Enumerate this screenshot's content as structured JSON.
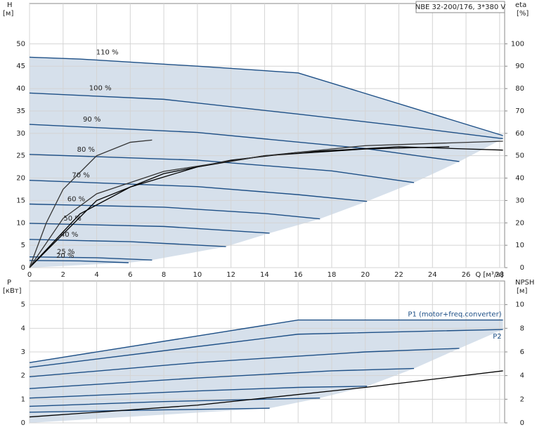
{
  "chart_data": [
    {
      "type": "line",
      "title": "NBE 32-200/176, 3*380 V",
      "y_label": "H",
      "y_unit": "[м]",
      "y2_label": "eta",
      "y2_unit": "[%]",
      "x_label": "Q [м³/ч]",
      "xlim": [
        0,
        28.3
      ],
      "xticks": [
        0,
        2,
        4,
        6,
        8,
        10,
        12,
        14,
        16,
        18,
        20,
        22,
        24,
        26,
        28
      ],
      "ylim": [
        0,
        59
      ],
      "yticks": [
        0,
        5,
        10,
        15,
        20,
        25,
        30,
        35,
        40,
        45,
        50
      ],
      "y2lim": [
        0,
        118
      ],
      "y2ticks": [
        0,
        10,
        20,
        30,
        40,
        50,
        60,
        70,
        80,
        90,
        100
      ],
      "grid": true,
      "envelope_color": "#cfdbe7",
      "series": [
        {
          "name": "110 %",
          "color": "#1d4f86",
          "x": [
            0,
            3,
            10,
            16,
            28.2
          ],
          "values": [
            47,
            46.6,
            45,
            43.5,
            29.5
          ]
        },
        {
          "name": "100 %",
          "color": "#1d4f86",
          "x": [
            0,
            8,
            16,
            22,
            28.2
          ],
          "values": [
            39,
            37.6,
            34.3,
            31.7,
            28.8
          ]
        },
        {
          "name": "90 %",
          "color": "#1d4f86",
          "x": [
            0,
            10,
            20,
            25.6
          ],
          "values": [
            32,
            30.2,
            26.6,
            23.7
          ]
        },
        {
          "name": "80 %",
          "color": "#1d4f86",
          "x": [
            0,
            10,
            18,
            22.9
          ],
          "values": [
            25.3,
            24,
            21.6,
            19
          ]
        },
        {
          "name": "70 %",
          "color": "#1d4f86",
          "x": [
            0,
            10,
            16,
            20.1
          ],
          "values": [
            19.5,
            18.1,
            16.3,
            14.8
          ]
        },
        {
          "name": "60 %",
          "color": "#1d4f86",
          "x": [
            0,
            8,
            14,
            17.3
          ],
          "values": [
            14.2,
            13.5,
            12.1,
            10.9
          ]
        },
        {
          "name": "50 %",
          "color": "#1d4f86",
          "x": [
            0,
            8,
            14.3
          ],
          "values": [
            9.9,
            9.2,
            7.7
          ]
        },
        {
          "name": "40 %",
          "color": "#1d4f86",
          "x": [
            0,
            6,
            11.7
          ],
          "values": [
            6.3,
            5.8,
            4.7
          ]
        },
        {
          "name": "25 %",
          "color": "#1d4f86",
          "x": [
            0,
            4,
            7.3
          ],
          "values": [
            2.4,
            2.2,
            1.7
          ]
        },
        {
          "name": "20 %",
          "color": "#1d4f86",
          "x": [
            0,
            3,
            5.9
          ],
          "values": [
            1.6,
            1.5,
            1.1
          ]
        },
        {
          "axis": "y2",
          "color": "#000000",
          "x": [
            0,
            4,
            8,
            12,
            16,
            22,
            28.2
          ],
          "values": [
            0,
            30,
            42,
            48,
            51.5,
            54,
            52.5
          ]
        },
        {
          "axis": "y2",
          "color": "#000000",
          "x": [
            0,
            3,
            6,
            10,
            14,
            20,
            25
          ],
          "values": [
            0,
            24,
            36,
            45,
            50,
            53,
            54
          ]
        },
        {
          "axis": "y2",
          "color": "#333333",
          "x": [
            0,
            2,
            4,
            8,
            14,
            20,
            28.2
          ],
          "values": [
            0,
            22,
            33,
            43,
            50,
            54.5,
            56.5
          ]
        },
        {
          "axis": "y2",
          "color": "#333333",
          "x": [
            0,
            1,
            2,
            4,
            6,
            7.3
          ],
          "values": [
            0,
            20,
            35,
            50,
            56,
            57
          ]
        }
      ]
    },
    {
      "type": "line",
      "y_label": "P",
      "y_unit": "[кВт]",
      "y2_label": "NPSH",
      "y2_unit": "[м]",
      "xlim": [
        0,
        28.3
      ],
      "xticks": [
        0,
        2,
        4,
        6,
        8,
        10,
        12,
        14,
        16,
        18,
        20,
        22,
        24,
        26,
        28
      ],
      "ylim": [
        0,
        6
      ],
      "yticks": [
        0,
        1,
        2,
        3,
        4,
        5
      ],
      "y2lim": [
        0,
        12
      ],
      "y2ticks": [
        0,
        2,
        4,
        6,
        8,
        10
      ],
      "grid": true,
      "envelope_color": "#cfdbe7",
      "series": [
        {
          "name": "P1 (motor+freq.converter)",
          "color": "#1d4f86",
          "x": [
            0,
            16,
            28.2
          ],
          "values": [
            2.55,
            4.35,
            4.35
          ]
        },
        {
          "name": "P2",
          "color": "#1d4f86",
          "x": [
            0,
            16,
            28.2
          ],
          "values": [
            2.35,
            3.75,
            3.95
          ]
        },
        {
          "color": "#1d4f86",
          "x": [
            0,
            10,
            20,
            25.6
          ],
          "values": [
            1.95,
            2.55,
            3.0,
            3.15
          ]
        },
        {
          "color": "#1d4f86",
          "x": [
            0,
            10,
            18,
            22.9
          ],
          "values": [
            1.45,
            1.9,
            2.2,
            2.3
          ]
        },
        {
          "color": "#1d4f86",
          "x": [
            0,
            10,
            16,
            20.1
          ],
          "values": [
            1.05,
            1.35,
            1.5,
            1.55
          ]
        },
        {
          "color": "#1d4f86",
          "x": [
            0,
            8,
            14,
            17.3
          ],
          "values": [
            0.7,
            0.9,
            1.0,
            1.05
          ]
        },
        {
          "color": "#1d4f86",
          "x": [
            0,
            8,
            14.3
          ],
          "values": [
            0.45,
            0.55,
            0.62
          ]
        },
        {
          "axis": "y2",
          "color": "#000000",
          "x": [
            0,
            10,
            20,
            28.2
          ],
          "values": [
            0.5,
            1.5,
            3.0,
            4.4
          ]
        }
      ]
    }
  ]
}
